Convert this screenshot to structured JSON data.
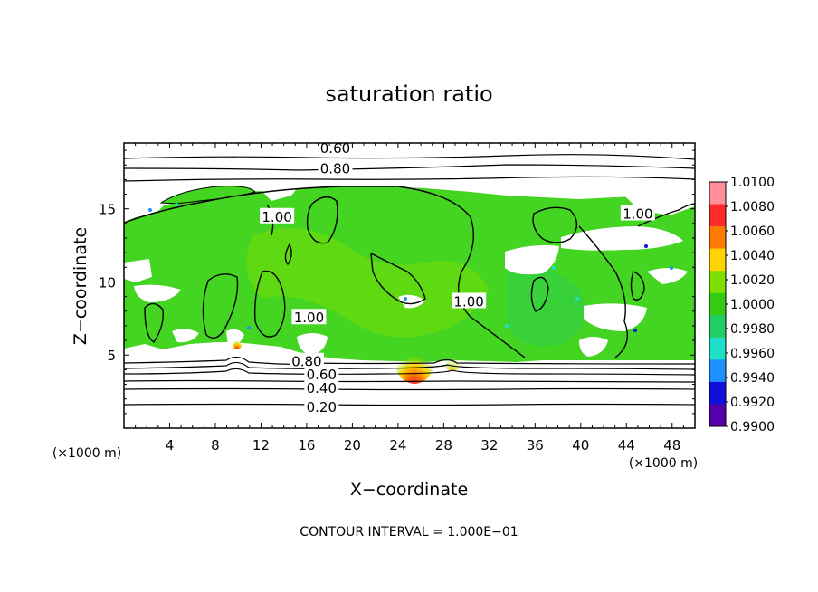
{
  "chart_data": {
    "type": "heatmap",
    "title": "saturation ratio",
    "xlabel": "X−coordinate",
    "ylabel": "Z−coordinate",
    "x_unit_left": "(×1000 m)",
    "x_unit_right": "(×1000 m)",
    "footer": "CONTOUR INTERVAL = 1.000E−01",
    "xlim": [
      0,
      50
    ],
    "ylim": [
      0,
      19.5
    ],
    "xticks": [
      4,
      8,
      12,
      16,
      20,
      24,
      28,
      32,
      36,
      40,
      44,
      48
    ],
    "yticks": [
      5,
      10,
      15
    ],
    "grid": false,
    "colorbar": {
      "labels": [
        "1.0100",
        "1.0080",
        "1.0060",
        "1.0040",
        "1.0020",
        "1.0000",
        "0.9980",
        "0.9960",
        "0.9940",
        "0.9920",
        "0.9900"
      ],
      "colors": [
        "#ff8f9c",
        "#ff2a2a",
        "#ff7a00",
        "#ffd400",
        "#7ee000",
        "#33cc11",
        "#22cc66",
        "#1ee0c8",
        "#1e90ff",
        "#1010dd",
        "#5500aa"
      ]
    },
    "contour_labels": [
      {
        "text": "0.60",
        "x": 18.5,
        "z": 19.2
      },
      {
        "text": "0.80",
        "x": 18.5,
        "z": 17.8
      },
      {
        "text": "1.00",
        "x": 13.4,
        "z": 14.5
      },
      {
        "text": "1.00",
        "x": 16.2,
        "z": 7.6
      },
      {
        "text": "1.00",
        "x": 30.2,
        "z": 8.7
      },
      {
        "text": "1.00",
        "x": 45.0,
        "z": 14.7
      },
      {
        "text": "0.80",
        "x": 16.0,
        "z": 4.6
      },
      {
        "text": "0.60",
        "x": 17.3,
        "z": 3.7
      },
      {
        "text": "0.40",
        "x": 17.3,
        "z": 2.8
      },
      {
        "text": "0.20",
        "x": 17.3,
        "z": 1.5
      }
    ],
    "cloud_base_z": 4.7,
    "cloud_top_z": 16.5
  }
}
